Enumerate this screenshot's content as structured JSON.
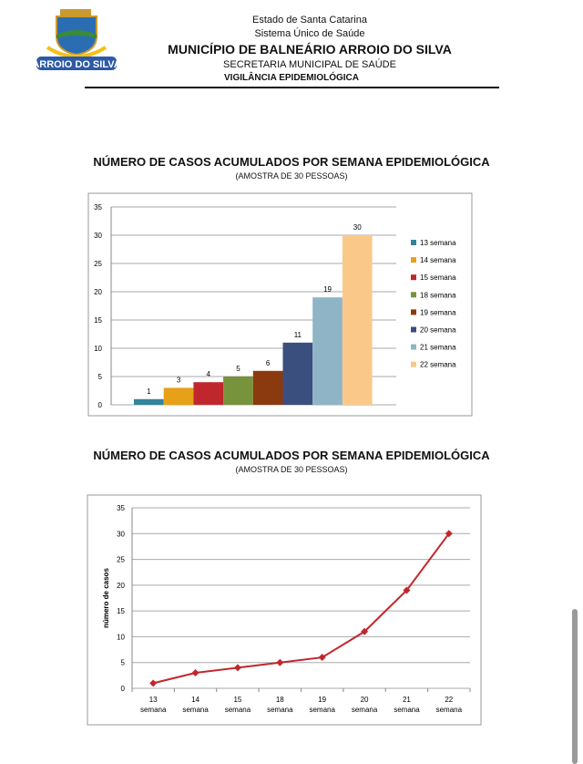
{
  "header": {
    "line1": "Estado de Santa Catarina",
    "line2": "Sistema Único de Saúde",
    "line3": "MUNICÍPIO DE BALNEÁRIO ARROIO DO SILVA",
    "line4": "SECRETARIA MUNICIPAL DE SAÚDE",
    "line5": "VIGILÂNCIA EPIDEMIOLÓGICA",
    "logo_text": "ARROIO DO SILVA"
  },
  "chart_data": [
    {
      "type": "bar",
      "title": "NÚMERO DE CASOS ACUMULADOS POR SEMANA EPIDEMIOLÓGICA",
      "subtitle": "(AMOSTRA DE 30 PESSOAS)",
      "categories": [
        "13 semana",
        "14 semana",
        "15 semana",
        "18 semana",
        "19 semana",
        "20 semana",
        "21 semana",
        "22 semana"
      ],
      "values": [
        1,
        3,
        4,
        5,
        6,
        11,
        19,
        30
      ],
      "colors": [
        "#31849b",
        "#e6a118",
        "#c0272d",
        "#77933c",
        "#8b3a0f",
        "#3b4f7e",
        "#8fb4c5",
        "#fac98a"
      ],
      "ylim": [
        0,
        35
      ],
      "yticks": [
        0,
        5,
        10,
        15,
        20,
        25,
        30,
        35
      ],
      "grid": true,
      "legend": "right"
    },
    {
      "type": "line",
      "title": "NÚMERO DE CASOS ACUMULADOS POR SEMANA EPIDEMIOLÓGICA",
      "subtitle": "(AMOSTRA DE 30 PESSOAS)",
      "ylabel": "número de casos",
      "categories": [
        [
          "13",
          "semana"
        ],
        [
          "14",
          "semana"
        ],
        [
          "15",
          "semana"
        ],
        [
          "18",
          "semana"
        ],
        [
          "19",
          "semana"
        ],
        [
          "20",
          "semana"
        ],
        [
          "21",
          "semana"
        ],
        [
          "22",
          "semana"
        ]
      ],
      "values": [
        1,
        3,
        4,
        5,
        6,
        11,
        19,
        30
      ],
      "color": "#c0272d",
      "ylim": [
        0,
        35
      ],
      "yticks": [
        0,
        5,
        10,
        15,
        20,
        25,
        30,
        35
      ],
      "grid": true
    }
  ]
}
